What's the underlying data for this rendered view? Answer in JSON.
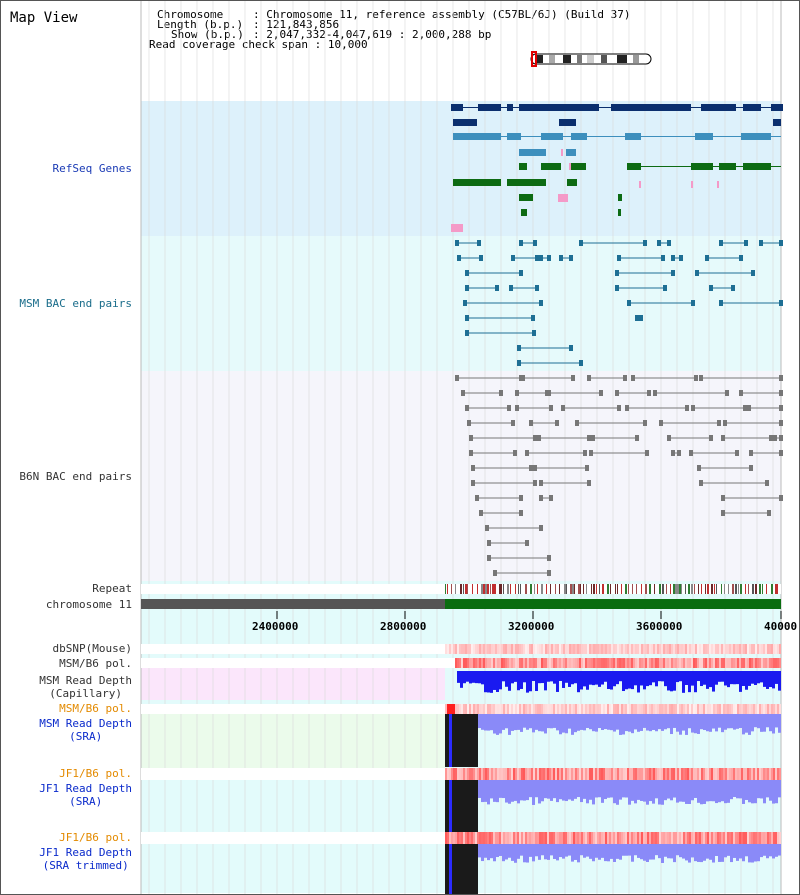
{
  "title": "Map View",
  "info": {
    "chromosome_label": "Chromosome",
    "chromosome_value": "Chromosome 11, reference assembly (C57BL/6J) (Build 37)",
    "length_label": "Length (b.p.)",
    "length_value": "121,843,856",
    "show_label": "Show (b.p.)",
    "show_value": "2,047,332-4,047,619 : 2,000,288 bp",
    "coverage_label": "Read coverage check span",
    "coverage_value": "10,000"
  },
  "tracks": {
    "refseq": "RefSeq Genes",
    "msm_bac": "MSM BAC end pairs",
    "b6n_bac": "B6N BAC end pairs",
    "repeat": "Repeat",
    "chromosome": "chromosome 11",
    "dbsnp": "dbSNP(Mouse)",
    "msm_b6_pol": "MSM/B6 pol.",
    "msm_depth_cap_1": "MSM Read Depth",
    "msm_depth_cap_2": "(Capillary)",
    "msm_b6_pol_2": "MSM/B6 pol.",
    "msm_depth_sra_1": "MSM Read Depth",
    "msm_depth_sra_2": "(SRA)",
    "jf1_b6_pol": "JF1/B6 pol.",
    "jf1_depth_sra_1": "JF1 Read Depth",
    "jf1_depth_sra_2": "(SRA)",
    "jf1_b6_pol_2": "JF1/B6 pol.",
    "jf1_depth_trim_1": "JF1 Read Depth",
    "jf1_depth_trim_2": "(SRA trimmed)"
  },
  "axis": {
    "ticks": [
      "2400000",
      "2800000",
      "3200000",
      "3600000",
      "40000"
    ]
  },
  "colors": {
    "refseq_bg": "#ddf1fb",
    "msm_bg": "#e6fafb",
    "b6n_bg": "#f5f5fb",
    "lower_bg": "#e3fbfb",
    "cap_bg": "#fbe6fb",
    "sra_bg": "#ebfbeb",
    "gene_dark": "#0b2f6e",
    "gene_mid": "#3d8fbd",
    "gene_green": "#0d6b13",
    "gene_pink": "#f49ac8",
    "msm_pair": "#1e6f94",
    "b6n_pair": "#777777",
    "chrom_gray": "#555555",
    "chrom_green": "#0a6d10",
    "depth_blue": "#1a1af0",
    "depth_light": "#8a8af8"
  }
}
